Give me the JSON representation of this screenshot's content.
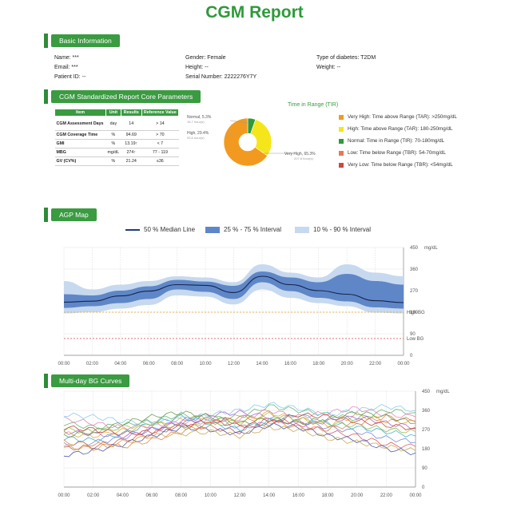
{
  "title": "CGM Report",
  "sections": {
    "basic": "Basic Information",
    "core": "CGM Standardized Report Core Parameters",
    "agp": "AGP Map",
    "multi": "Multi-day BG Curves"
  },
  "basic_info": {
    "name": "Name: ***",
    "email": "Email: ***",
    "patient_id": "Patient ID: --",
    "gender": "Gender: Female",
    "height": "Height: --",
    "serial": "Serial Number: 2222276Y7Y",
    "diabetes": "Type of diabetes: T2DM",
    "weight": "Weight: --"
  },
  "core_table": {
    "headers": [
      "Item",
      "Unit",
      "Results",
      "Reference Value"
    ],
    "rows": [
      {
        "item": "CGM Assessment Days",
        "unit": "day",
        "result": "14",
        "ref": "> 14"
      },
      {
        "item": "CGM Coverage Time",
        "unit": "%",
        "result": "94.69",
        "ref": "> 70"
      },
      {
        "item": "GMI",
        "unit": "%",
        "result": "13.19↑",
        "ref": "< 7"
      },
      {
        "item": "MBG",
        "unit": "mg/dL",
        "result": "274↑",
        "ref": "77 - 119"
      },
      {
        "item": "GV (CV%)",
        "unit": "%",
        "result": "21.24",
        "ref": "≤36"
      }
    ]
  },
  "tir": {
    "title": "Time in Range (TIR)",
    "labels": {
      "normal": "Normal, 5.3%",
      "normal_sub": "16.7 hour(s)",
      "high": "High, 29.4%",
      "high_sub": "93.6 hour(s)",
      "very_high": "Very High, 65.3%",
      "very_high_sub": "207.8 hour(s)"
    },
    "legend": [
      {
        "label": "Very High: Time above Range (TAR): >250mg/dL",
        "color": "#f29a1f"
      },
      {
        "label": "High: Time above Range (TAR): 180-250mg/dL",
        "color": "#f5e61c"
      },
      {
        "label": "Normal: Time in Range (TIR): 70-180mg/dL",
        "color": "#2e9a3a"
      },
      {
        "label": "Low: Time below Range (TBR): 54-70mg/dL",
        "color": "#e8775a"
      },
      {
        "label": "Very Low: Time below Range (TBR): <54mg/dL",
        "color": "#d04545"
      }
    ]
  },
  "agp_legend": {
    "median": "50 % Median Line",
    "iqr": "25 % - 75 % Interval",
    "outer": "10 % - 90 % Interval"
  },
  "chart_data": [
    {
      "type": "pie",
      "title": "Time in Range (TIR)",
      "categories": [
        "Normal",
        "High",
        "Very High"
      ],
      "values": [
        5.3,
        29.4,
        65.3
      ],
      "hours": [
        16.7,
        93.6,
        207.8
      ],
      "colors": [
        "#2e9a3a",
        "#f5e61c",
        "#f29a1f"
      ]
    },
    {
      "type": "area",
      "title": "AGP Map",
      "x": [
        0,
        2,
        4,
        6,
        8,
        10,
        12,
        14,
        16,
        18,
        20,
        22,
        24
      ],
      "xticks": [
        "00:00",
        "02:00",
        "04:00",
        "06:00",
        "08:00",
        "10:00",
        "12:00",
        "14:00",
        "16:00",
        "18:00",
        "20:00",
        "22:00",
        "00:00"
      ],
      "yticks": [
        0,
        90,
        180,
        270,
        360,
        450
      ],
      "ylabel": "mg/dL",
      "ylim": [
        0,
        450
      ],
      "thresholds": [
        {
          "value": 180,
          "label": "High BG"
        },
        {
          "value": 70,
          "label": "Low BG"
        }
      ],
      "series": [
        {
          "name": "50 % Median Line",
          "values": [
            222,
            226,
            248,
            268,
            295,
            292,
            262,
            330,
            295,
            270,
            255,
            228,
            220
          ]
        },
        {
          "name": "25 % - 75 % Interval",
          "upper": [
            255,
            250,
            270,
            288,
            315,
            308,
            290,
            350,
            325,
            305,
            340,
            310,
            295
          ],
          "lower": [
            198,
            205,
            218,
            235,
            275,
            265,
            235,
            305,
            268,
            240,
            225,
            200,
            195
          ]
        },
        {
          "name": "10 % - 90 % Interval",
          "upper": [
            310,
            275,
            295,
            310,
            330,
            325,
            305,
            380,
            345,
            325,
            380,
            345,
            330
          ],
          "lower": [
            175,
            180,
            195,
            210,
            250,
            245,
            212,
            275,
            240,
            218,
            205,
            178,
            175
          ]
        }
      ]
    },
    {
      "type": "line",
      "title": "Multi-day BG Curves",
      "x": [
        0,
        2,
        4,
        6,
        8,
        10,
        12,
        14,
        16,
        18,
        20,
        22,
        24
      ],
      "xticks": [
        "00:00",
        "02:00",
        "04:00",
        "06:00",
        "08:00",
        "10:00",
        "12:00",
        "14:00",
        "16:00",
        "18:00",
        "20:00",
        "22:00",
        "00:00"
      ],
      "yticks": [
        0,
        90,
        180,
        270,
        360,
        450
      ],
      "ylabel": "mg/dL",
      "ylim": [
        0,
        450
      ],
      "series": [
        {
          "values": [
            250,
            240,
            265,
            290,
            320,
            330,
            300,
            350,
            320,
            290,
            340,
            310,
            305
          ]
        },
        {
          "values": [
            200,
            210,
            230,
            270,
            300,
            320,
            280,
            300,
            310,
            280,
            260,
            230,
            210
          ]
        },
        {
          "values": [
            300,
            280,
            290,
            310,
            340,
            320,
            330,
            380,
            360,
            340,
            320,
            360,
            350
          ]
        },
        {
          "values": [
            180,
            190,
            220,
            250,
            290,
            280,
            260,
            320,
            300,
            260,
            240,
            200,
            190
          ]
        },
        {
          "values": [
            260,
            250,
            240,
            270,
            310,
            340,
            350,
            330,
            290,
            310,
            330,
            300,
            280
          ]
        },
        {
          "values": [
            230,
            220,
            250,
            300,
            330,
            300,
            270,
            310,
            340,
            300,
            280,
            260,
            240
          ]
        },
        {
          "values": [
            320,
            300,
            280,
            290,
            300,
            310,
            320,
            360,
            330,
            350,
            370,
            340,
            330
          ]
        },
        {
          "values": [
            150,
            170,
            200,
            240,
            280,
            270,
            250,
            290,
            280,
            240,
            220,
            180,
            160
          ]
        },
        {
          "values": [
            270,
            260,
            280,
            300,
            280,
            290,
            310,
            340,
            320,
            300,
            290,
            270,
            260
          ]
        },
        {
          "values": [
            210,
            200,
            190,
            220,
            260,
            300,
            330,
            310,
            280,
            270,
            300,
            330,
            310
          ]
        },
        {
          "values": [
            340,
            330,
            310,
            300,
            320,
            340,
            360,
            390,
            370,
            340,
            360,
            380,
            360
          ]
        },
        {
          "values": [
            190,
            180,
            210,
            240,
            250,
            260,
            240,
            280,
            270,
            230,
            210,
            190,
            170
          ]
        },
        {
          "values": [
            240,
            260,
            300,
            330,
            350,
            330,
            300,
            320,
            300,
            320,
            350,
            330,
            300
          ]
        },
        {
          "values": [
            280,
            270,
            250,
            260,
            290,
            310,
            290,
            300,
            340,
            330,
            310,
            290,
            275
          ]
        }
      ],
      "colors": [
        "#e8a020",
        "#6b7fd8",
        "#59b36b",
        "#d94b4b",
        "#a45bd0",
        "#39a8c6",
        "#e37ab6",
        "#3b4aa8",
        "#8dbb3c",
        "#e0793a",
        "#7ac8e6",
        "#c9a23d",
        "#5e8f3f",
        "#c0392b"
      ]
    }
  ]
}
